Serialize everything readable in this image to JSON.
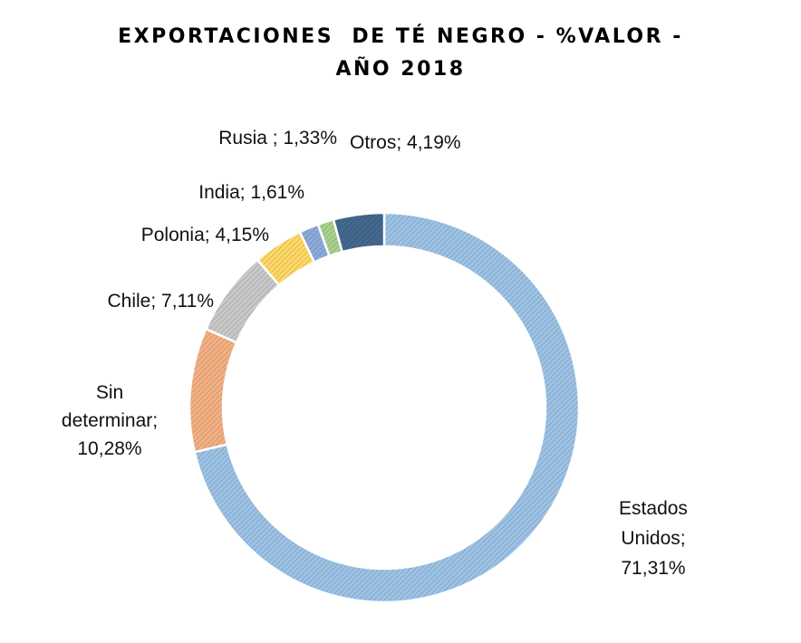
{
  "chart_data": {
    "type": "pie",
    "variant": "doughnut",
    "title_lines": [
      "EXPORTACIONES  DE TÉ NEGRO - %VALOR -",
      "AÑO 2018"
    ],
    "categories": [
      "Estados Unidos",
      "Sin determinar",
      "Chile",
      "Polonia",
      "India",
      "Rusia",
      "Otros"
    ],
    "values": [
      71.31,
      10.28,
      7.11,
      4.15,
      1.61,
      1.33,
      4.19
    ],
    "unit": "%",
    "labels": [
      [
        "Estados",
        "Unidos;",
        "71,31%"
      ],
      [
        "Sin",
        "determinar;",
        "10,28%"
      ],
      [
        "Chile; 7,11%"
      ],
      [
        "Polonia; 4,15%"
      ],
      [
        "India; 1,61%"
      ],
      [
        "Rusia ; 1,33%"
      ],
      [
        "Otros; 4,19%"
      ]
    ],
    "colors": [
      "#9DC3E6",
      "#F4B183",
      "#C9C9C9",
      "#FFD966",
      "#8FAADC",
      "#A9D18E",
      "#44698F"
    ],
    "fill_pattern": "diagonal-hatch",
    "legend": "none"
  }
}
